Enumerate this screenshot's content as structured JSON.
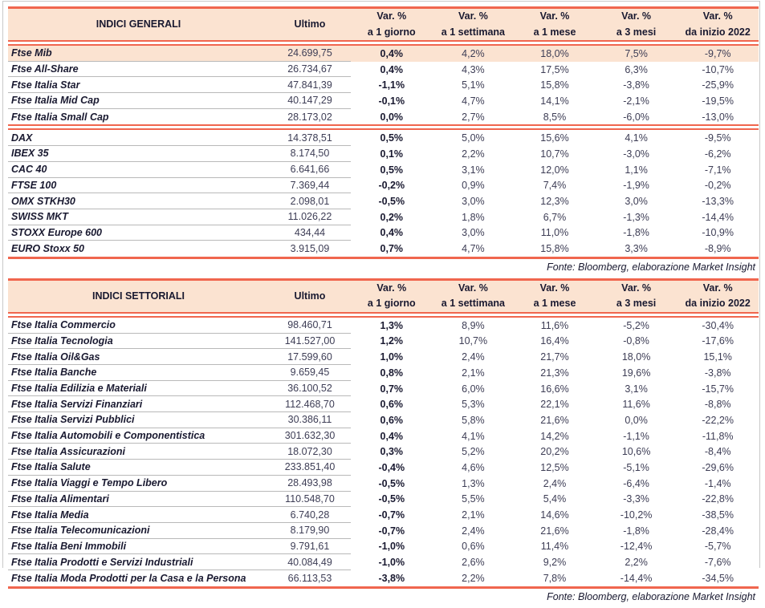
{
  "colors": {
    "accent": "#f0664e",
    "header_bg": "#fbe3d1",
    "highlight_bg": "#fbe3d1",
    "ink": "#191930",
    "value_ink": "#3d3d55",
    "row_separator": "#b9b9b9",
    "outer_frame": "#c9c9c9"
  },
  "tables": [
    {
      "title": "INDICI GENERALI",
      "ultimo_label": "Ultimo",
      "columns": [
        {
          "line1": "Var. %",
          "line2": "a 1 giorno"
        },
        {
          "line1": "Var. %",
          "line2": "a 1 settimana"
        },
        {
          "line1": "Var. %",
          "line2": "a 1 mese"
        },
        {
          "line1": "Var. %",
          "line2": "a 3 mesi"
        },
        {
          "line1": "Var. %",
          "line2": "da inizio 2022"
        }
      ],
      "source": "Fonte: Bloomberg, elaborazione Market Insight",
      "groups": [
        {
          "rows": [
            {
              "name": "Ftse Mib",
              "ultimo": "24.699,75",
              "d1": "0,4%",
              "w1": "4,2%",
              "m1": "18,0%",
              "m3": "7,5%",
              "ytd": "-9,7%",
              "highlight": true
            },
            {
              "name": "Ftse All-Share",
              "ultimo": "26.734,67",
              "d1": "0,4%",
              "w1": "4,3%",
              "m1": "17,5%",
              "m3": "6,3%",
              "ytd": "-10,7%"
            },
            {
              "name": "Ftse Italia Star",
              "ultimo": "47.841,39",
              "d1": "-1,1%",
              "w1": "5,1%",
              "m1": "15,8%",
              "m3": "-3,8%",
              "ytd": "-25,9%"
            },
            {
              "name": "Ftse Italia Mid Cap",
              "ultimo": "40.147,29",
              "d1": "-0,1%",
              "w1": "4,7%",
              "m1": "14,1%",
              "m3": "-2,1%",
              "ytd": "-19,5%"
            },
            {
              "name": "Ftse Italia Small Cap",
              "ultimo": "28.173,02",
              "d1": "0,0%",
              "w1": "2,7%",
              "m1": "8,5%",
              "m3": "-6,0%",
              "ytd": "-13,0%"
            }
          ]
        },
        {
          "rows": [
            {
              "name": "DAX",
              "ultimo": "14.378,51",
              "d1": "0,5%",
              "w1": "5,0%",
              "m1": "15,6%",
              "m3": "4,1%",
              "ytd": "-9,5%"
            },
            {
              "name": "IBEX 35",
              "ultimo": "8.174,50",
              "d1": "0,1%",
              "w1": "2,2%",
              "m1": "10,7%",
              "m3": "-3,0%",
              "ytd": "-6,2%"
            },
            {
              "name": "CAC 40",
              "ultimo": "6.641,66",
              "d1": "0,5%",
              "w1": "3,1%",
              "m1": "12,0%",
              "m3": "1,1%",
              "ytd": "-7,1%"
            },
            {
              "name": "FTSE 100",
              "ultimo": "7.369,44",
              "d1": "-0,2%",
              "w1": "0,9%",
              "m1": "7,4%",
              "m3": "-1,9%",
              "ytd": "-0,2%"
            },
            {
              "name": "OMX STKH30",
              "ultimo": "2.098,01",
              "d1": "-0,5%",
              "w1": "3,0%",
              "m1": "12,3%",
              "m3": "3,0%",
              "ytd": "-13,3%"
            },
            {
              "name": "SWISS MKT",
              "ultimo": "11.026,22",
              "d1": "0,2%",
              "w1": "1,8%",
              "m1": "6,7%",
              "m3": "-1,3%",
              "ytd": "-14,4%"
            },
            {
              "name": "STOXX Europe 600",
              "ultimo": "434,44",
              "d1": "0,4%",
              "w1": "3,0%",
              "m1": "11,0%",
              "m3": "-1,8%",
              "ytd": "-10,9%"
            },
            {
              "name": "EURO Stoxx 50",
              "ultimo": "3.915,09",
              "d1": "0,7%",
              "w1": "4,7%",
              "m1": "15,8%",
              "m3": "3,3%",
              "ytd": "-8,9%"
            }
          ]
        }
      ]
    },
    {
      "title": "INDICI SETTORIALI",
      "ultimo_label": "Ultimo",
      "columns": [
        {
          "line1": "Var. %",
          "line2": "a 1 giorno"
        },
        {
          "line1": "Var. %",
          "line2": "a 1 settimana"
        },
        {
          "line1": "Var. %",
          "line2": "a 1 mese"
        },
        {
          "line1": "Var. %",
          "line2": "a 3 mesi"
        },
        {
          "line1": "Var. %",
          "line2": "da inizio 2022"
        }
      ],
      "source": "Fonte: Bloomberg, elaborazione Market Insight",
      "groups": [
        {
          "rows": [
            {
              "name": "Ftse Italia Commercio",
              "ultimo": "98.460,71",
              "d1": "1,3%",
              "w1": "8,9%",
              "m1": "11,6%",
              "m3": "-5,2%",
              "ytd": "-30,4%"
            },
            {
              "name": "Ftse Italia Tecnologia",
              "ultimo": "141.527,00",
              "d1": "1,2%",
              "w1": "10,7%",
              "m1": "16,4%",
              "m3": "-0,8%",
              "ytd": "-17,6%"
            },
            {
              "name": "Ftse Italia Oil&Gas",
              "ultimo": "17.599,60",
              "d1": "1,0%",
              "w1": "2,4%",
              "m1": "21,7%",
              "m3": "18,0%",
              "ytd": "15,1%"
            },
            {
              "name": "Ftse Italia Banche",
              "ultimo": "9.659,45",
              "d1": "0,8%",
              "w1": "2,1%",
              "m1": "21,3%",
              "m3": "19,6%",
              "ytd": "-3,8%"
            },
            {
              "name": "Ftse Italia Edilizia e Materiali",
              "ultimo": "36.100,52",
              "d1": "0,7%",
              "w1": "6,0%",
              "m1": "16,6%",
              "m3": "3,1%",
              "ytd": "-15,7%"
            },
            {
              "name": "Ftse Italia Servizi Finanziari",
              "ultimo": "112.468,70",
              "d1": "0,6%",
              "w1": "5,3%",
              "m1": "22,1%",
              "m3": "11,6%",
              "ytd": "-8,8%"
            },
            {
              "name": "Ftse Italia Servizi Pubblici",
              "ultimo": "30.386,11",
              "d1": "0,6%",
              "w1": "5,8%",
              "m1": "21,6%",
              "m3": "0,0%",
              "ytd": "-22,2%"
            },
            {
              "name": "Ftse Italia Automobili e Componentistica",
              "ultimo": "301.632,30",
              "d1": "0,4%",
              "w1": "4,1%",
              "m1": "14,2%",
              "m3": "-1,1%",
              "ytd": "-11,8%"
            },
            {
              "name": "Ftse Italia Assicurazioni",
              "ultimo": "18.072,30",
              "d1": "0,3%",
              "w1": "5,2%",
              "m1": "20,2%",
              "m3": "10,6%",
              "ytd": "-8,4%"
            },
            {
              "name": "Ftse Italia Salute",
              "ultimo": "233.851,40",
              "d1": "-0,4%",
              "w1": "4,6%",
              "m1": "12,5%",
              "m3": "-5,1%",
              "ytd": "-29,6%"
            },
            {
              "name": "Ftse Italia Viaggi e Tempo Libero",
              "ultimo": "28.493,98",
              "d1": "-0,5%",
              "w1": "1,3%",
              "m1": "2,4%",
              "m3": "-6,4%",
              "ytd": "-1,4%"
            },
            {
              "name": "Ftse Italia Alimentari",
              "ultimo": "110.548,70",
              "d1": "-0,5%",
              "w1": "5,5%",
              "m1": "5,4%",
              "m3": "-3,3%",
              "ytd": "-22,8%"
            },
            {
              "name": "Ftse Italia Media",
              "ultimo": "6.740,28",
              "d1": "-0,7%",
              "w1": "2,1%",
              "m1": "14,6%",
              "m3": "-10,2%",
              "ytd": "-38,5%"
            },
            {
              "name": "Ftse Italia Telecomunicazioni",
              "ultimo": "8.179,90",
              "d1": "-0,7%",
              "w1": "2,4%",
              "m1": "21,6%",
              "m3": "-1,8%",
              "ytd": "-28,4%"
            },
            {
              "name": "Ftse Italia Beni Immobili",
              "ultimo": "9.791,61",
              "d1": "-1,0%",
              "w1": "0,6%",
              "m1": "11,4%",
              "m3": "-12,4%",
              "ytd": "-5,7%"
            },
            {
              "name": "Ftse Italia Prodotti e Servizi Industriali",
              "ultimo": "40.084,49",
              "d1": "-1,0%",
              "w1": "2,6%",
              "m1": "9,2%",
              "m3": "2,2%",
              "ytd": "-7,6%"
            },
            {
              "name": "Ftse Italia Moda Prodotti per la Casa e la Persona",
              "ultimo": "66.113,53",
              "d1": "-3,8%",
              "w1": "2,2%",
              "m1": "7,8%",
              "m3": "-14,4%",
              "ytd": "-34,5%"
            }
          ]
        }
      ]
    }
  ]
}
